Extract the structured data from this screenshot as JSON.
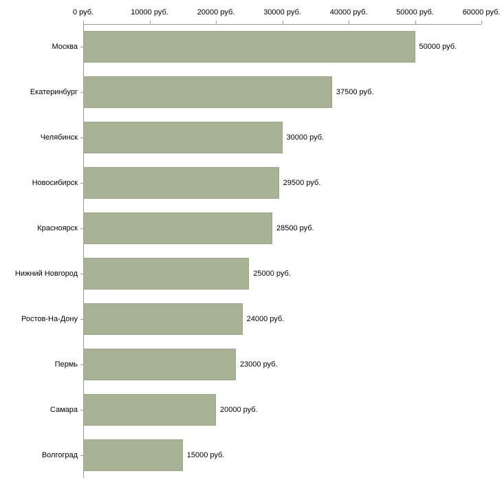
{
  "chart_data": {
    "type": "bar",
    "orientation": "horizontal",
    "title": "",
    "xlabel": "",
    "ylabel": "",
    "xlim": [
      0,
      60000
    ],
    "grid": false,
    "legend": false,
    "bar_color": "#a8b396",
    "bar_border_color": "#9aa588",
    "axis_color": "#9a9a9a",
    "categories": [
      "Москва",
      "Екатеринбург",
      "Челябинск",
      "Новосибирск",
      "Красноярск",
      "Нижний Новгород",
      "Ростов-На-Дону",
      "Пермь",
      "Самара",
      "Волгоград"
    ],
    "values": [
      50000,
      37500,
      30000,
      29500,
      28500,
      25000,
      24000,
      23000,
      20000,
      15000
    ],
    "value_labels": [
      "50000 руб.",
      "37500 руб.",
      "30000 руб.",
      "29500 руб.",
      "28500 руб.",
      "25000 руб.",
      "24000 руб.",
      "23000 руб.",
      "20000 руб.",
      "15000 руб."
    ],
    "x_ticks": [
      {
        "value": 0,
        "label": "0 руб."
      },
      {
        "value": 10000,
        "label": "10000 руб."
      },
      {
        "value": 20000,
        "label": "20000 руб."
      },
      {
        "value": 30000,
        "label": "30000 руб."
      },
      {
        "value": 40000,
        "label": "40000 руб."
      },
      {
        "value": 50000,
        "label": "50000 руб."
      },
      {
        "value": 60000,
        "label": "60000 руб."
      }
    ]
  }
}
